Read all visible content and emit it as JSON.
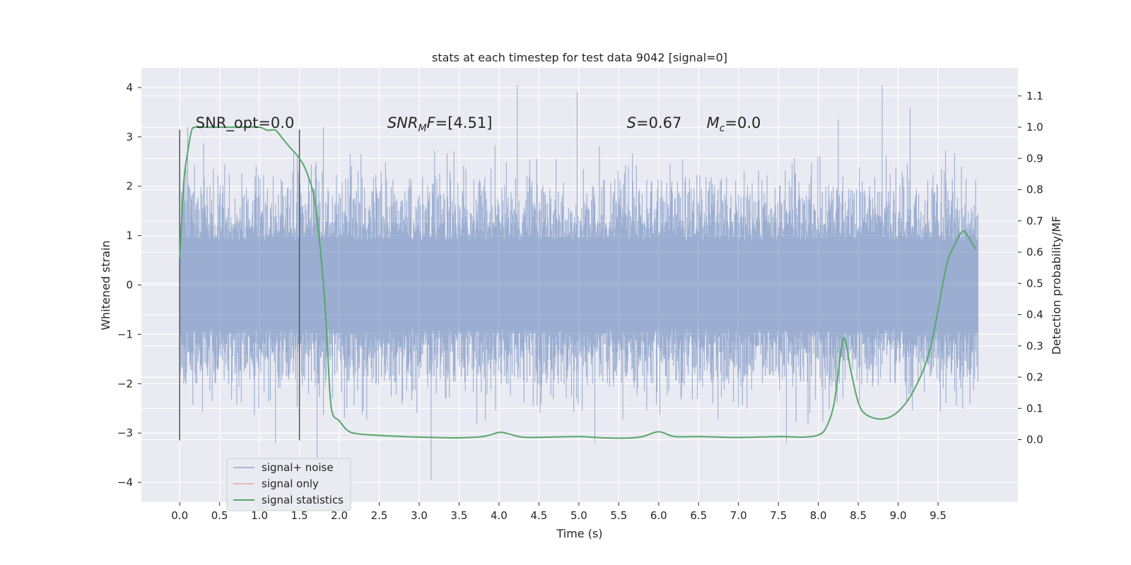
{
  "chart_data": {
    "type": "line",
    "title": "stats at each timestep for test data 9042 [signal=0]",
    "xlabel": "Time (s)",
    "ylabel_left": "Whitened strain",
    "ylabel_right": "Detection probability/MF",
    "xlim": [
      -0.48,
      10.5
    ],
    "ylim_left": [
      -4.4,
      4.4
    ],
    "ylim_right": [
      -0.2,
      1.19
    ],
    "xticks": [
      0.0,
      0.5,
      1.0,
      1.5,
      2.0,
      2.5,
      3.0,
      3.5,
      4.0,
      4.5,
      5.0,
      5.5,
      6.0,
      6.5,
      7.0,
      7.5,
      8.0,
      8.5,
      9.0,
      9.5
    ],
    "xtick_labels": [
      "0.0",
      "0.5",
      "1.0",
      "1.5",
      "2.0",
      "2.5",
      "3.0",
      "3.5",
      "4.0",
      "4.5",
      "5.0",
      "5.5",
      "6.0",
      "6.5",
      "7.0",
      "7.5",
      "8.0",
      "8.5",
      "9.0",
      "9.5"
    ],
    "yticks_left": [
      -4,
      -3,
      -2,
      -1,
      0,
      1,
      2,
      3,
      4
    ],
    "yticks_left_labels": [
      "−4",
      "−3",
      "−2",
      "−1",
      "0",
      "1",
      "2",
      "3",
      "4"
    ],
    "yticks_right": [
      0.0,
      0.1,
      0.2,
      0.3,
      0.4,
      0.5,
      0.6,
      0.7,
      0.8,
      0.9,
      1.0,
      1.1
    ],
    "yticks_right_labels": [
      "0.0",
      "0.1",
      "0.2",
      "0.3",
      "0.4",
      "0.5",
      "0.6",
      "0.7",
      "0.8",
      "0.9",
      "1.0",
      "1.1"
    ],
    "grid": true,
    "legend_position": "bottom-left",
    "series": [
      {
        "name": "signal+ noise",
        "color": "#4c72b0",
        "axis": "left",
        "x_range": [
          0.0,
          10.0
        ],
        "typical_range": [
          -1.7,
          1.7
        ],
        "sample_count": 1400,
        "extreme_peaks": [
          {
            "x": 0.1,
            "y": 3.2
          },
          {
            "x": 1.8,
            "y": 3.2
          },
          {
            "x": 3.15,
            "y": -3.95
          },
          {
            "x": 4.23,
            "y": 4.05
          },
          {
            "x": 4.98,
            "y": 3.9
          },
          {
            "x": 5.2,
            "y": -3.2
          },
          {
            "x": 7.6,
            "y": -3.2
          },
          {
            "x": 8.25,
            "y": 3.35
          },
          {
            "x": 8.8,
            "y": 4.05
          },
          {
            "x": 9.15,
            "y": 3.6
          },
          {
            "x": 1.72,
            "y": -3.5
          },
          {
            "x": 1.2,
            "y": -3.2
          }
        ]
      },
      {
        "name": "signal only",
        "color": "#dd8452",
        "axis": "left",
        "x": [],
        "y": []
      },
      {
        "name": "signal statistics",
        "color": "#55a868",
        "axis": "right",
        "x": [
          0.0,
          0.05,
          0.1,
          0.15,
          0.2,
          0.3,
          0.5,
          0.8,
          1.0,
          1.1,
          1.2,
          1.3,
          1.4,
          1.5,
          1.6,
          1.7,
          1.8,
          1.85,
          1.9,
          2.0,
          2.1,
          2.2,
          2.4,
          2.8,
          3.2,
          3.5,
          3.8,
          4.0,
          4.1,
          4.3,
          4.6,
          5.0,
          5.3,
          5.6,
          5.8,
          6.0,
          6.2,
          6.5,
          7.0,
          7.5,
          7.8,
          8.0,
          8.1,
          8.2,
          8.3,
          8.35,
          8.4,
          8.5,
          8.6,
          8.8,
          9.0,
          9.2,
          9.4,
          9.6,
          9.7,
          9.8,
          9.85,
          9.9,
          9.97
        ],
        "y": [
          0.58,
          0.82,
          0.92,
          0.99,
          1.0,
          1.0,
          1.0,
          1.0,
          1.0,
          0.99,
          0.99,
          0.96,
          0.93,
          0.9,
          0.85,
          0.75,
          0.5,
          0.3,
          0.1,
          0.06,
          0.03,
          0.02,
          0.015,
          0.01,
          0.007,
          0.006,
          0.01,
          0.023,
          0.02,
          0.008,
          0.008,
          0.01,
          0.006,
          0.005,
          0.01,
          0.025,
          0.01,
          0.01,
          0.007,
          0.01,
          0.008,
          0.015,
          0.04,
          0.12,
          0.31,
          0.305,
          0.23,
          0.12,
          0.08,
          0.066,
          0.09,
          0.16,
          0.29,
          0.55,
          0.62,
          0.665,
          0.66,
          0.64,
          0.61
        ]
      }
    ],
    "vertical_markers": [
      {
        "x": 0.0,
        "y_from": -3.15,
        "y_to": 3.15,
        "color": "#555555"
      },
      {
        "x": 1.5,
        "y_from": -3.15,
        "y_to": 3.15,
        "color": "#555555"
      }
    ],
    "annotations": [
      {
        "id": "snr-opt",
        "x": 0.2,
        "y": 3.3,
        "text": "SNR_opt=0.0",
        "italic_prefix": "",
        "subscript": "",
        "rest": ""
      },
      {
        "id": "snr-mf",
        "x": 2.6,
        "y": 3.3,
        "italic_prefix": "SNR",
        "subscript": "M",
        "italic_suffix": "F",
        "rest": "=[4.51]"
      },
      {
        "id": "s-value",
        "x": 5.6,
        "y": 3.3,
        "italic_prefix": "S",
        "subscript": "",
        "italic_suffix": "",
        "rest": "=0.67"
      },
      {
        "id": "mc-value",
        "x": 6.6,
        "y": 3.3,
        "italic_prefix": "M",
        "subscript": "c",
        "italic_suffix": "",
        "rest": "=0.0"
      }
    ],
    "colors": {
      "plot_background": "#eaeaf2",
      "grid": "#ffffff",
      "noise": "#4c72b0",
      "signal_only": "#dd8452",
      "statistics": "#55a868"
    }
  }
}
